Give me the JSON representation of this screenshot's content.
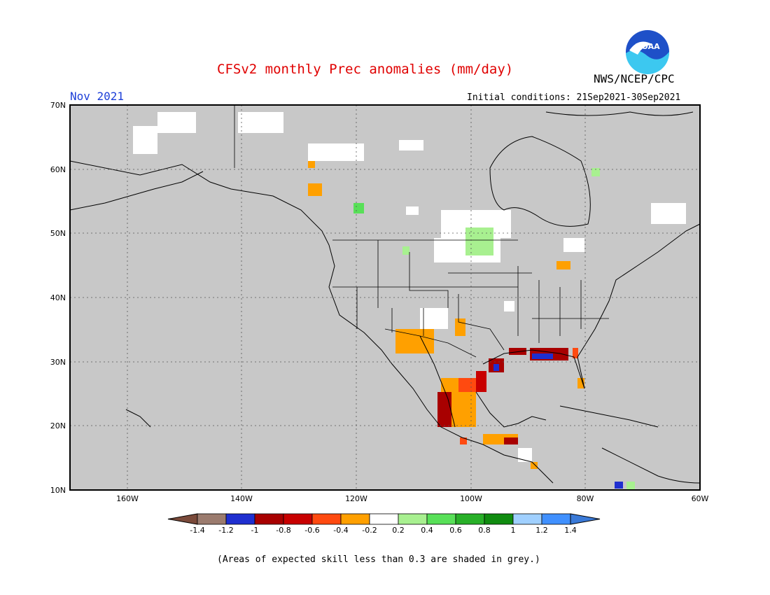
{
  "header": {
    "title": "CFSv2 monthly Prec anomalies (mm/day)",
    "month": "Nov 2021",
    "initial_conditions": "Initial conditions: 21Sep2021-30Sep2021",
    "agency": "NWS/NCEP/CPC",
    "logo_text": "NOAA"
  },
  "map": {
    "lat_ticks": [
      "70N",
      "60N",
      "50N",
      "40N",
      "30N",
      "20N",
      "10N"
    ],
    "lon_ticks": [
      "160W",
      "140W",
      "120W",
      "100W",
      "80W",
      "60W"
    ],
    "background_color": "#c8c8c8",
    "anomaly_patches": [
      {
        "region": "central-mexico",
        "value": -0.4
      },
      {
        "region": "western-mexico",
        "value": -1.0
      },
      {
        "region": "southwest-us",
        "value": -0.4
      },
      {
        "region": "gulf-coast",
        "value": -1.0
      },
      {
        "region": "texas-coast",
        "value": -1.0
      },
      {
        "region": "upper-midwest",
        "value": 0.4
      },
      {
        "region": "central-america",
        "value": -0.6
      },
      {
        "region": "florida",
        "value": -0.4
      },
      {
        "region": "great-lakes",
        "value": -0.4
      }
    ]
  },
  "colorbar": {
    "labels": [
      "-1.4",
      "-1.2",
      "-1",
      "-0.8",
      "-0.6",
      "-0.4",
      "-0.2",
      "0.2",
      "0.4",
      "0.6",
      "0.8",
      "1",
      "1.2",
      "1.4"
    ],
    "colors": [
      "#7a4a3a",
      "#9b7b6e",
      "#1f2fd0",
      "#a80000",
      "#c80000",
      "#ff4a10",
      "#ffa000",
      "#ffffff",
      "#a8f090",
      "#58e058",
      "#28b028",
      "#108c10",
      "#a0d0ff",
      "#4090ff",
      "#3a7ad8"
    ]
  },
  "footer": {
    "note": "(Areas of expected skill less than 0.3 are shaded in grey.)"
  }
}
